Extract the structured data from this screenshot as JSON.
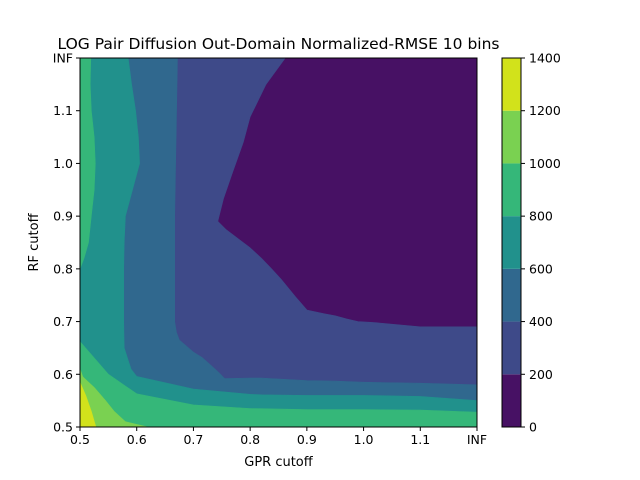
{
  "chart_data": {
    "type": "contourf",
    "title": "LOG Pair Diffusion Out-Domain Normalized-RMSE 10 bins",
    "xlabel": "GPR cutoff",
    "ylabel": "RF cutoff",
    "x_ticks": [
      "0.5",
      "0.6",
      "0.7",
      "0.8",
      "0.9",
      "1.0",
      "1.1",
      "INF"
    ],
    "y_ticks": [
      "0.5",
      "0.6",
      "0.7",
      "0.8",
      "0.9",
      "1.0",
      "1.1",
      "INF"
    ],
    "x_values": [
      0.5,
      0.6,
      0.7,
      0.8,
      0.9,
      1.0,
      1.1,
      1.2
    ],
    "y_values": [
      0.5,
      0.6,
      0.7,
      0.8,
      0.9,
      1.0,
      1.1,
      1.2
    ],
    "xlim": [
      0.5,
      1.2
    ],
    "ylim": [
      0.5,
      1.2
    ],
    "colorbar": {
      "levels": [
        0,
        200,
        400,
        600,
        800,
        1000,
        1200,
        1400
      ],
      "tick_labels": [
        "0",
        "200",
        "400",
        "600",
        "800",
        "1000",
        "1200",
        "1400"
      ],
      "colors": [
        "#471164",
        "#3e4a89",
        "#30688e",
        "#21918c",
        "#35b779",
        "#7ad151",
        "#d2e21b"
      ]
    },
    "regions": [
      {
        "level_range": [
          0,
          200
        ],
        "color": "#471164",
        "polygon": [
          [
            0.862,
            1.2
          ],
          [
            1.2,
            1.2
          ],
          [
            1.2,
            0.69
          ],
          [
            1.1,
            0.69
          ],
          [
            1.02,
            0.698
          ],
          [
            0.99,
            0.7
          ],
          [
            0.97,
            0.705
          ],
          [
            0.95,
            0.711
          ],
          [
            0.93,
            0.715
          ],
          [
            0.9,
            0.722
          ],
          [
            0.88,
            0.747
          ],
          [
            0.855,
            0.78
          ],
          [
            0.838,
            0.8
          ],
          [
            0.82,
            0.82
          ],
          [
            0.8,
            0.84
          ],
          [
            0.78,
            0.856
          ],
          [
            0.758,
            0.874
          ],
          [
            0.743,
            0.89
          ],
          [
            0.753,
            0.933
          ],
          [
            0.768,
            0.98
          ],
          [
            0.775,
            1.0
          ],
          [
            0.788,
            1.04
          ],
          [
            0.8,
            1.088
          ],
          [
            0.828,
            1.15
          ]
        ]
      },
      {
        "level_range": [
          200,
          400
        ],
        "color": "#3e4a89",
        "polygon": [
          [
            0.672,
            1.2
          ],
          [
            0.862,
            1.2
          ],
          [
            0.828,
            1.15
          ],
          [
            0.8,
            1.088
          ],
          [
            0.788,
            1.04
          ],
          [
            0.768,
            0.98
          ],
          [
            0.753,
            0.933
          ],
          [
            0.743,
            0.89
          ],
          [
            0.758,
            0.874
          ],
          [
            0.78,
            0.856
          ],
          [
            0.8,
            0.84
          ],
          [
            0.82,
            0.82
          ],
          [
            0.838,
            0.8
          ],
          [
            0.855,
            0.78
          ],
          [
            0.88,
            0.747
          ],
          [
            0.9,
            0.722
          ],
          [
            0.93,
            0.715
          ],
          [
            0.95,
            0.711
          ],
          [
            0.97,
            0.705
          ],
          [
            0.99,
            0.7
          ],
          [
            1.02,
            0.698
          ],
          [
            1.1,
            0.69
          ],
          [
            1.2,
            0.69
          ],
          [
            1.2,
            0.58
          ],
          [
            1.1,
            0.583
          ],
          [
            1.0,
            0.585
          ],
          [
            0.95,
            0.587
          ],
          [
            0.9,
            0.588
          ],
          [
            0.82,
            0.593
          ],
          [
            0.8,
            0.593
          ],
          [
            0.755,
            0.592
          ],
          [
            0.745,
            0.603
          ],
          [
            0.73,
            0.618
          ],
          [
            0.715,
            0.632
          ],
          [
            0.7,
            0.642
          ],
          [
            0.675,
            0.665
          ],
          [
            0.67,
            0.68
          ],
          [
            0.667,
            0.7
          ],
          [
            0.667,
            0.8
          ],
          [
            0.667,
            0.9
          ]
        ]
      },
      {
        "level_range": [
          400,
          600
        ],
        "color": "#30688e",
        "polygon": [
          [
            0.585,
            1.2
          ],
          [
            0.672,
            1.2
          ],
          [
            0.667,
            0.9
          ],
          [
            0.667,
            0.8
          ],
          [
            0.667,
            0.7
          ],
          [
            0.67,
            0.68
          ],
          [
            0.675,
            0.665
          ],
          [
            0.7,
            0.642
          ],
          [
            0.715,
            0.632
          ],
          [
            0.73,
            0.618
          ],
          [
            0.745,
            0.603
          ],
          [
            0.755,
            0.592
          ],
          [
            0.8,
            0.593
          ],
          [
            0.82,
            0.593
          ],
          [
            0.9,
            0.588
          ],
          [
            0.95,
            0.587
          ],
          [
            1.0,
            0.585
          ],
          [
            1.1,
            0.583
          ],
          [
            1.2,
            0.58
          ],
          [
            1.2,
            0.55
          ],
          [
            1.1,
            0.558
          ],
          [
            1.0,
            0.56
          ],
          [
            0.9,
            0.56
          ],
          [
            0.82,
            0.561
          ],
          [
            0.8,
            0.562
          ],
          [
            0.7,
            0.572
          ],
          [
            0.6,
            0.596
          ],
          [
            0.59,
            0.61
          ],
          [
            0.578,
            0.65
          ],
          [
            0.577,
            0.7
          ],
          [
            0.577,
            0.75
          ],
          [
            0.577,
            0.8
          ],
          [
            0.578,
            0.85
          ],
          [
            0.58,
            0.9
          ],
          [
            0.605,
            1.0
          ],
          [
            0.603,
            1.05
          ],
          [
            0.598,
            1.1
          ],
          [
            0.591,
            1.15
          ]
        ]
      },
      {
        "level_range": [
          600,
          800
        ],
        "color": "#21918c",
        "polygon": [
          [
            0.519,
            1.2
          ],
          [
            0.585,
            1.2
          ],
          [
            0.591,
            1.15
          ],
          [
            0.598,
            1.1
          ],
          [
            0.603,
            1.05
          ],
          [
            0.605,
            1.0
          ],
          [
            0.58,
            0.9
          ],
          [
            0.578,
            0.85
          ],
          [
            0.577,
            0.8
          ],
          [
            0.577,
            0.75
          ],
          [
            0.577,
            0.7
          ],
          [
            0.578,
            0.65
          ],
          [
            0.59,
            0.61
          ],
          [
            0.6,
            0.596
          ],
          [
            0.7,
            0.572
          ],
          [
            0.8,
            0.562
          ],
          [
            0.82,
            0.561
          ],
          [
            0.9,
            0.56
          ],
          [
            1.0,
            0.56
          ],
          [
            1.1,
            0.558
          ],
          [
            1.2,
            0.55
          ],
          [
            1.2,
            0.528
          ],
          [
            1.1,
            0.532
          ],
          [
            1.0,
            0.533
          ],
          [
            0.9,
            0.533
          ],
          [
            0.8,
            0.535
          ],
          [
            0.7,
            0.542
          ],
          [
            0.6,
            0.563
          ],
          [
            0.55,
            0.6
          ],
          [
            0.5,
            0.662
          ],
          [
            0.5,
            0.7
          ],
          [
            0.5,
            0.75
          ],
          [
            0.5,
            0.8
          ],
          [
            0.507,
            0.82
          ],
          [
            0.515,
            0.85
          ],
          [
            0.52,
            0.9
          ],
          [
            0.525,
            0.95
          ],
          [
            0.527,
            1.0
          ],
          [
            0.525,
            1.05
          ],
          [
            0.52,
            1.1
          ],
          [
            0.518,
            1.15
          ]
        ]
      },
      {
        "level_range": [
          800,
          1000
        ],
        "color": "#35b779",
        "polygon": [
          [
            0.5,
            1.2
          ],
          [
            0.519,
            1.2
          ],
          [
            0.518,
            1.15
          ],
          [
            0.52,
            1.1
          ],
          [
            0.525,
            1.05
          ],
          [
            0.527,
            1.0
          ],
          [
            0.525,
            0.95
          ],
          [
            0.52,
            0.9
          ],
          [
            0.515,
            0.85
          ],
          [
            0.507,
            0.82
          ],
          [
            0.5,
            0.8
          ],
          [
            0.5,
            0.75
          ],
          [
            0.5,
            0.7
          ],
          [
            0.5,
            0.662
          ],
          [
            0.55,
            0.6
          ],
          [
            0.6,
            0.563
          ],
          [
            0.7,
            0.542
          ],
          [
            0.8,
            0.535
          ],
          [
            0.9,
            0.533
          ],
          [
            1.0,
            0.533
          ],
          [
            1.1,
            0.532
          ],
          [
            1.2,
            0.528
          ],
          [
            1.2,
            0.5
          ],
          [
            0.62,
            0.5
          ],
          [
            0.6,
            0.505
          ],
          [
            0.58,
            0.51
          ],
          [
            0.56,
            0.53
          ],
          [
            0.545,
            0.55
          ],
          [
            0.525,
            0.575
          ],
          [
            0.505,
            0.595
          ],
          [
            0.5,
            0.61
          ],
          [
            0.5,
            1.0
          ]
        ]
      },
      {
        "level_range": [
          1000,
          1200
        ],
        "color": "#7ad151",
        "polygon": [
          [
            0.5,
            0.61
          ],
          [
            0.505,
            0.595
          ],
          [
            0.525,
            0.575
          ],
          [
            0.545,
            0.55
          ],
          [
            0.56,
            0.53
          ],
          [
            0.58,
            0.51
          ],
          [
            0.6,
            0.505
          ],
          [
            0.62,
            0.5
          ],
          [
            0.528,
            0.5
          ],
          [
            0.52,
            0.53
          ],
          [
            0.51,
            0.56
          ],
          [
            0.5,
            0.585
          ]
        ]
      },
      {
        "level_range": [
          1200,
          1400
        ],
        "color": "#d2e21b",
        "polygon": [
          [
            0.5,
            0.585
          ],
          [
            0.51,
            0.56
          ],
          [
            0.52,
            0.53
          ],
          [
            0.528,
            0.5
          ],
          [
            0.5,
            0.5
          ]
        ]
      }
    ]
  }
}
